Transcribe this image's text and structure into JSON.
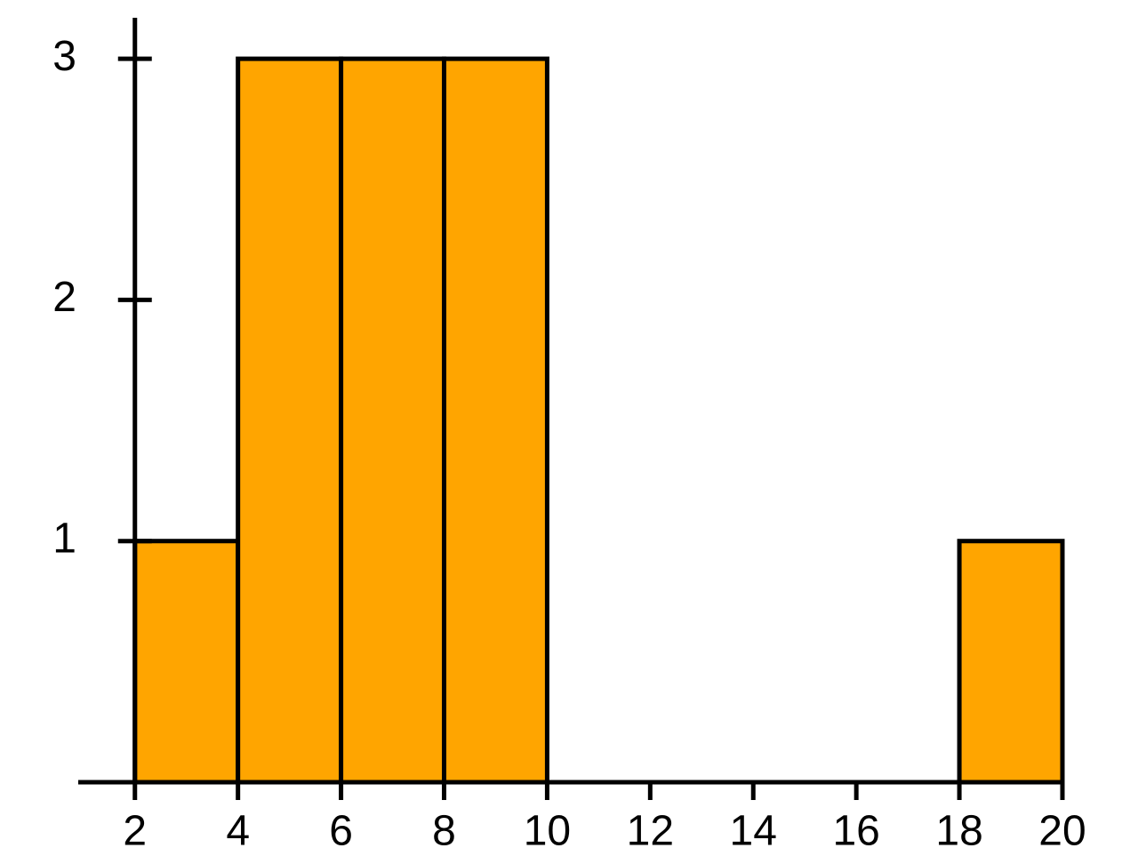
{
  "chart_data": {
    "type": "histogram",
    "bins": [
      2,
      4,
      6,
      8,
      10,
      12,
      14,
      16,
      18,
      20
    ],
    "values": [
      1,
      3,
      3,
      3,
      0,
      0,
      0,
      0,
      1
    ],
    "color": "#FFA500",
    "xlim": [
      0.9,
      20
    ],
    "xticks": [
      2,
      4,
      6,
      8,
      10,
      12,
      14,
      16,
      18,
      20
    ],
    "ylim": [
      0,
      3.17
    ],
    "yticks": [
      1,
      2,
      3
    ]
  }
}
